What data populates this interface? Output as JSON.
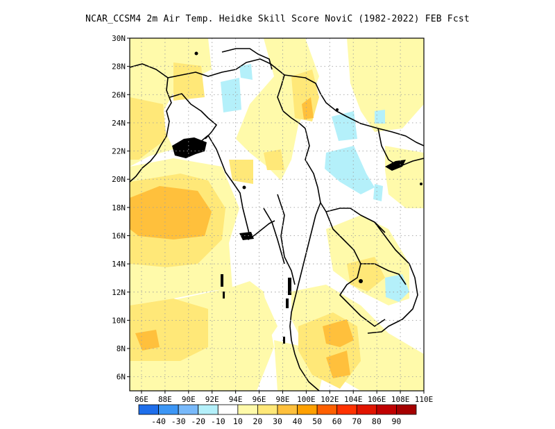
{
  "title": "NCAR_CCSM4  2m Air Temp. Heidke Skill Score NoviC (1982-2022) FEB Fcst",
  "map": {
    "lon_range": [
      85,
      110
    ],
    "lat_range": [
      5,
      30
    ],
    "lon_labels": [
      "86E",
      "88E",
      "90E",
      "92E",
      "94E",
      "96E",
      "98E",
      "100E",
      "102E",
      "104E",
      "106E",
      "108E",
      "110E"
    ],
    "lat_labels": [
      "6N",
      "8N",
      "10N",
      "12N",
      "14N",
      "16N",
      "18N",
      "20N",
      "22N",
      "24N",
      "26N",
      "28N",
      "30N"
    ],
    "gridlines": "dotted"
  },
  "colorbar": {
    "colors": [
      "#1e6eeb",
      "#3c96f5",
      "#78b9fa",
      "#b4f0fa",
      "#ffffff",
      "#fffaaa",
      "#ffe878",
      "#ffc03c",
      "#ffa000",
      "#ff6000",
      "#ff3200",
      "#e11400",
      "#c00000",
      "#a50000"
    ],
    "labels": [
      "-40",
      "-30",
      "-20",
      "-10",
      "10",
      "20",
      "30",
      "40",
      "50",
      "60",
      "70",
      "80",
      "90"
    ]
  },
  "fill_colors": {
    "light_yellow": "#fffaaa",
    "yellow": "#ffe878",
    "orange": "#ffc03c",
    "light_cyan": "#b4f0fa"
  }
}
